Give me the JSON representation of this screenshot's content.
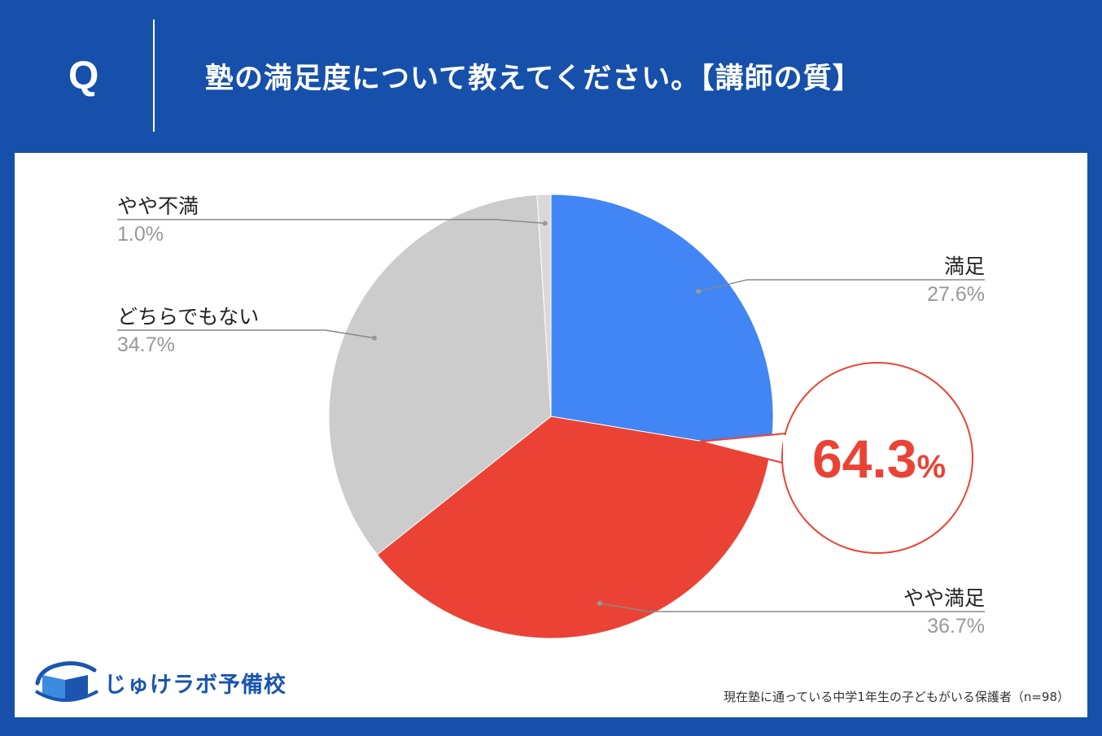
{
  "header": {
    "q_label": "Q",
    "question": "塾の満足度について教えてください。【講師の質】"
  },
  "colors": {
    "background": "#1650aa",
    "satisfied": "#4285f4",
    "somewhat_satisfied": "#ea4335",
    "neither": "#cccccc",
    "somewhat_dissatisfied": "#d9d9d9",
    "highlight": "#ea4335"
  },
  "chart_data": {
    "type": "pie",
    "start": "12 o'clock, clockwise",
    "slices": [
      {
        "label": "満足",
        "value": 27.6,
        "value_label": "27.6%",
        "color": "#4285f4"
      },
      {
        "label": "やや満足",
        "value": 36.7,
        "value_label": "36.7%",
        "color": "#ea4335"
      },
      {
        "label": "どちらでもない",
        "value": 34.7,
        "value_label": "34.7%",
        "color": "#cccccc"
      },
      {
        "label": "やや不満",
        "value": 1.0,
        "value_label": "1.0%",
        "color": "#d9d9d9"
      }
    ],
    "callout": "64.3",
    "callout_unit": "%"
  },
  "logo": {
    "text": "じゅけラボ予備校",
    "icon": "book-icon"
  },
  "footnote": "現在塾に通っている中学1年生の子どもがいる保護者（n=98）"
}
